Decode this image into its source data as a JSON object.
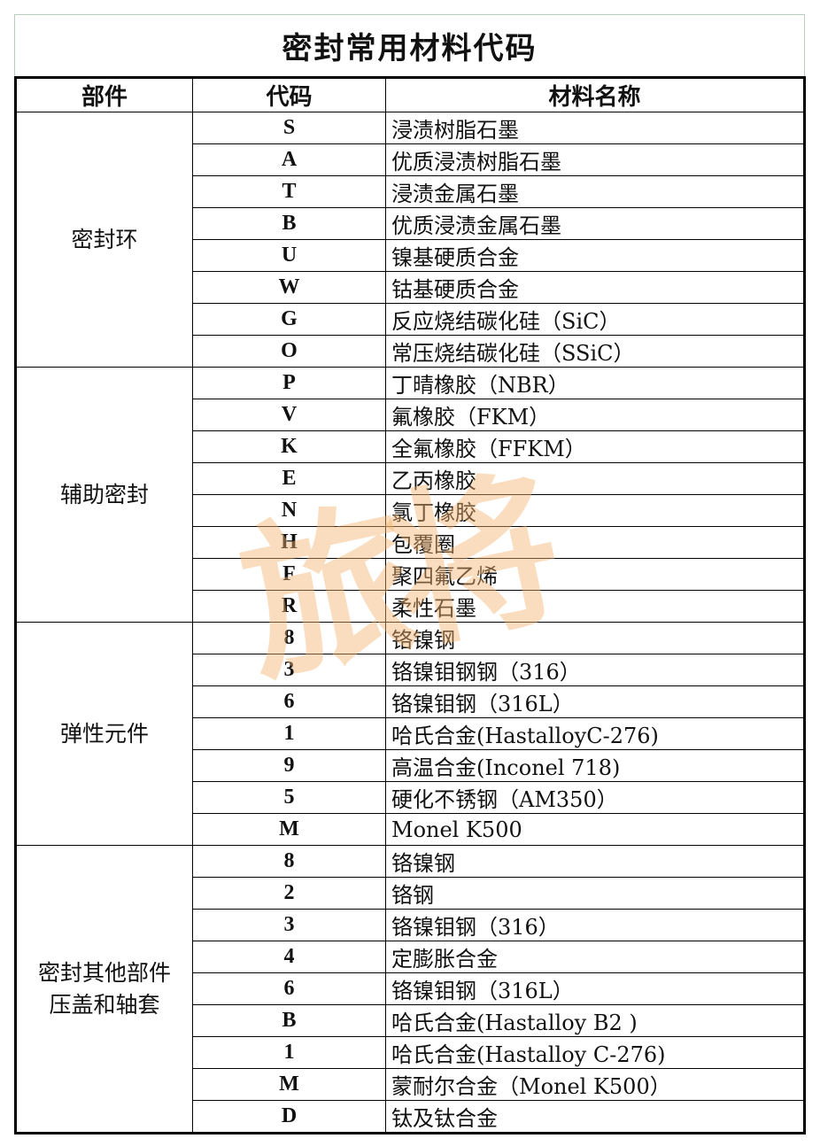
{
  "title": "密封常用材料代码",
  "headers": {
    "part": "部件",
    "code": "代码",
    "material": "材料名称"
  },
  "watermark": "旅将",
  "groups": [
    {
      "part": "密封环",
      "rows": [
        {
          "code": "S",
          "material": "浸渍树脂石墨"
        },
        {
          "code": "A",
          "material": "优质浸渍树脂石墨"
        },
        {
          "code": "T",
          "material": "浸渍金属石墨"
        },
        {
          "code": "B",
          "material": "优质浸渍金属石墨"
        },
        {
          "code": "U",
          "material": "镍基硬质合金"
        },
        {
          "code": "W",
          "material": "钴基硬质合金"
        },
        {
          "code": "G",
          "material": "反应烧结碳化硅（SiC）"
        },
        {
          "code": "O",
          "material": "常压烧结碳化硅（SSiC）"
        }
      ]
    },
    {
      "part": "辅助密封",
      "rows": [
        {
          "code": "P",
          "material": "丁晴橡胶（NBR）"
        },
        {
          "code": "V",
          "material": "氟橡胶（FKM）"
        },
        {
          "code": "K",
          "material": "全氟橡胶（FFKM）"
        },
        {
          "code": "E",
          "material": "乙丙橡胶"
        },
        {
          "code": "N",
          "material": "氯丁橡胶"
        },
        {
          "code": "H",
          "material": "包覆圈"
        },
        {
          "code": "F",
          "material": "聚四氟乙烯"
        },
        {
          "code": "R",
          "material": "柔性石墨"
        }
      ]
    },
    {
      "part": "弹性元件",
      "rows": [
        {
          "code": "8",
          "material": "铬镍钢"
        },
        {
          "code": "3",
          "material": "铬镍钼钢钢（316）"
        },
        {
          "code": "6",
          "material": "铬镍钼钢（316L）"
        },
        {
          "code": "1",
          "material": "哈氏合金(HastalloyC-276)"
        },
        {
          "code": "9",
          "material": "高温合金(Inconel 718)"
        },
        {
          "code": "5",
          "material": "硬化不锈钢（AM350）"
        },
        {
          "code": "M",
          "material": "Monel K500"
        }
      ]
    },
    {
      "part": "密封其他部件\n压盖和轴套",
      "rows": [
        {
          "code": "8",
          "material": "铬镍钢"
        },
        {
          "code": "2",
          "material": "铬钢"
        },
        {
          "code": "3",
          "material": "铬镍钼钢（316）"
        },
        {
          "code": "4",
          "material": "定膨胀合金"
        },
        {
          "code": "6",
          "material": "铬镍钼钢（316L）"
        },
        {
          "code": "B",
          "material": "哈氏合金(Hastalloy B2 )"
        },
        {
          "code": "1",
          "material": "哈氏合金(Hastalloy C-276)"
        },
        {
          "code": "M",
          "material": "蒙耐尔合金（Monel K500）"
        },
        {
          "code": "D",
          "material": "钛及钛合金"
        }
      ]
    }
  ]
}
